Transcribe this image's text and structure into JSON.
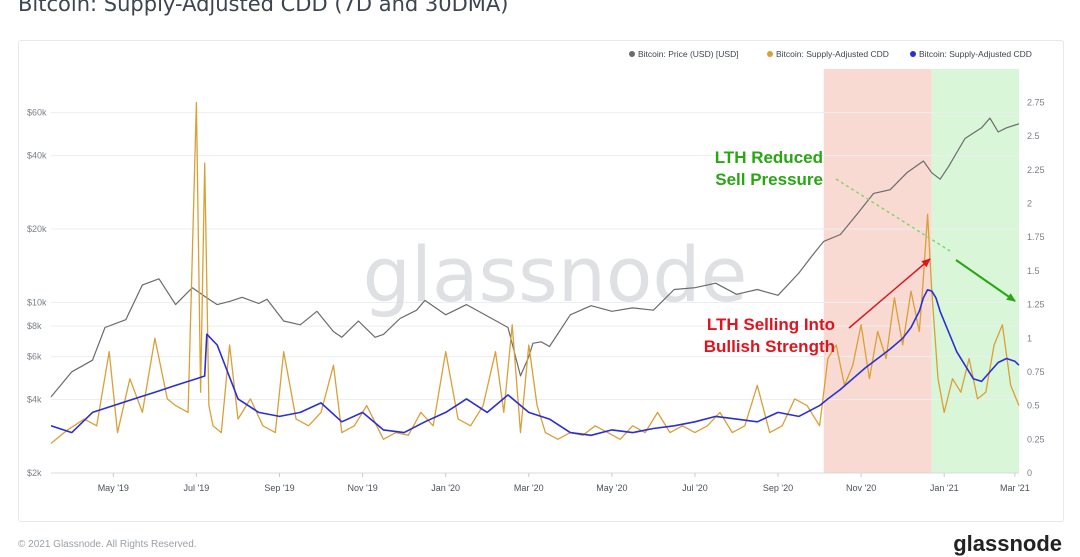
{
  "page": {
    "title": "Bitcoin: Supply-Adjusted CDD (7D and 30DMA)",
    "footer_copyright": "© 2021 Glassnode. All Rights Reserved.",
    "footer_brand": "glassnode",
    "watermark": "glassnode"
  },
  "colors": {
    "price": "#6b6b6b",
    "cdd_7d": "#d9a037",
    "cdd_30dma": "#2a2fd4",
    "highlight_red": "#f8d3cb",
    "highlight_green": "#d2f5d2",
    "annotation_red": "#e0141e",
    "annotation_green": "#2aa614"
  },
  "chart_data": {
    "type": "line",
    "title": "Bitcoin: Supply-Adjusted CDD (7D and 30DMA)",
    "legend_position": "top-right",
    "legend": [
      "Bitcoin: Price (USD) [USD]",
      "Bitcoin: Supply-Adjusted CDD",
      "Bitcoin: Supply-Adjusted CDD"
    ],
    "x_ticks": [
      "May '19",
      "Jul '19",
      "Sep '19",
      "Nov '19",
      "Jan '20",
      "Mar '20",
      "May '20",
      "Jul '20",
      "Sep '20",
      "Nov '20",
      "Jan '21",
      "Mar '21"
    ],
    "x_range_months": [
      0,
      23.3
    ],
    "y_left": {
      "scale": "log",
      "range": [
        2000,
        75000
      ],
      "ticks": [
        2000,
        4000,
        6000,
        8000,
        10000,
        20000,
        40000,
        60000
      ],
      "tick_labels": [
        "$2k",
        "$4k",
        "$6k",
        "$8k",
        "$10k",
        "$20k",
        "$40k",
        "$60k"
      ]
    },
    "y_right": {
      "scale": "linear",
      "range": [
        0,
        2.85
      ],
      "ticks": [
        0,
        0.25,
        0.5,
        0.75,
        1,
        1.25,
        1.5,
        1.75,
        2,
        2.25,
        2.5,
        2.75
      ],
      "tick_labels": [
        "0",
        "0.25",
        "0.5",
        "0.75",
        "1",
        "1.25",
        "1.5",
        "1.75",
        "2",
        "2.25",
        "2.5",
        "2.75"
      ]
    },
    "highlights": [
      {
        "name": "lth-selling-region",
        "from_month": 18.6,
        "to_month": 21.2,
        "color": "red"
      },
      {
        "name": "lth-reduced-region",
        "from_month": 21.2,
        "to_month": 23.3,
        "color": "green"
      }
    ],
    "annotations": [
      {
        "name": "lth-reduced-sell-pressure",
        "lines": [
          "LTH Reduced",
          "Sell Pressure"
        ],
        "color": "green"
      },
      {
        "name": "lth-selling-into-bullish-strength",
        "lines": [
          "LTH Selling Into",
          "Bullish Strength"
        ],
        "color": "red"
      }
    ],
    "series": [
      {
        "name": "Bitcoin: Price (USD) [USD]",
        "axis": "left",
        "x": [
          0,
          0.5,
          1,
          1.3,
          1.8,
          2.2,
          2.6,
          3.0,
          3.4,
          3.8,
          4.0,
          4.3,
          4.6,
          5.0,
          5.2,
          5.6,
          6.0,
          6.4,
          6.8,
          7.0,
          7.4,
          7.8,
          8.0,
          8.4,
          8.8,
          9.0,
          9.5,
          10.0,
          10.5,
          11.0,
          11.3,
          11.5,
          11.6,
          11.8,
          12.0,
          12.5,
          13.0,
          13.5,
          14.0,
          14.5,
          15.0,
          15.5,
          16.0,
          16.5,
          17.0,
          17.5,
          18.0,
          18.3,
          18.6,
          19.0,
          19.4,
          19.8,
          20.2,
          20.6,
          21.0,
          21.2,
          21.4,
          21.6,
          22.0,
          22.4,
          22.6,
          22.8,
          23.0,
          23.3
        ],
        "values": [
          4100,
          5200,
          5800,
          7900,
          8500,
          11800,
          12500,
          9800,
          11500,
          10300,
          9800,
          10100,
          10500,
          9900,
          10300,
          8400,
          8100,
          9200,
          7600,
          7200,
          8400,
          7200,
          7400,
          8600,
          9300,
          10200,
          8900,
          9800,
          8800,
          7900,
          5000,
          6000,
          6800,
          6900,
          6600,
          8900,
          9700,
          9200,
          9500,
          9300,
          11300,
          11500,
          12000,
          10800,
          11300,
          10700,
          13200,
          15400,
          17800,
          19000,
          23000,
          28000,
          29000,
          34000,
          38000,
          34000,
          32000,
          36000,
          47000,
          52000,
          57000,
          50000,
          52000,
          54000
        ]
      },
      {
        "name": "Bitcoin: Supply-Adjusted CDD (7D)",
        "axis": "right",
        "x": [
          0,
          0.4,
          0.8,
          1.1,
          1.4,
          1.6,
          1.9,
          2.2,
          2.5,
          2.8,
          3.0,
          3.3,
          3.5,
          3.6,
          3.7,
          3.8,
          3.9,
          4.1,
          4.3,
          4.5,
          4.8,
          5.1,
          5.4,
          5.6,
          5.9,
          6.2,
          6.5,
          6.8,
          7.0,
          7.3,
          7.6,
          8.0,
          8.3,
          8.6,
          8.9,
          9.2,
          9.5,
          9.8,
          10.1,
          10.4,
          10.7,
          10.9,
          11.1,
          11.3,
          11.5,
          11.7,
          11.9,
          12.2,
          12.5,
          12.8,
          13.1,
          13.4,
          13.7,
          14.0,
          14.3,
          14.6,
          14.9,
          15.2,
          15.5,
          15.8,
          16.1,
          16.4,
          16.7,
          17.0,
          17.3,
          17.6,
          17.9,
          18.2,
          18.5,
          18.7,
          18.9,
          19.1,
          19.3,
          19.5,
          19.7,
          19.9,
          20.1,
          20.3,
          20.5,
          20.7,
          20.9,
          21.0,
          21.1,
          21.2,
          21.35,
          21.5,
          21.7,
          21.9,
          22.1,
          22.3,
          22.5,
          22.7,
          22.9,
          23.1,
          23.3
        ],
        "values": [
          0.22,
          0.32,
          0.4,
          0.35,
          0.9,
          0.3,
          0.7,
          0.45,
          1.0,
          0.55,
          0.5,
          0.45,
          2.75,
          0.6,
          2.3,
          0.5,
          0.35,
          0.3,
          0.95,
          0.4,
          0.55,
          0.35,
          0.3,
          0.9,
          0.4,
          0.35,
          0.45,
          0.8,
          0.3,
          0.35,
          0.5,
          0.25,
          0.3,
          0.28,
          0.45,
          0.35,
          0.9,
          0.4,
          0.35,
          0.5,
          0.9,
          0.45,
          1.1,
          0.3,
          0.95,
          0.5,
          0.3,
          0.25,
          0.3,
          0.28,
          0.35,
          0.3,
          0.25,
          0.35,
          0.3,
          0.45,
          0.3,
          0.35,
          0.3,
          0.35,
          0.45,
          0.3,
          0.35,
          0.65,
          0.3,
          0.35,
          0.55,
          0.5,
          0.35,
          0.85,
          0.95,
          0.65,
          0.8,
          1.1,
          0.7,
          1.05,
          0.85,
          1.3,
          0.95,
          1.35,
          1.05,
          1.45,
          1.92,
          1.35,
          0.7,
          0.45,
          0.7,
          0.6,
          0.85,
          0.55,
          0.6,
          0.95,
          1.1,
          0.65,
          0.5
        ]
      },
      {
        "name": "Bitcoin: Supply-Adjusted CDD (30DMA)",
        "axis": "right",
        "x": [
          0,
          0.5,
          1,
          1.5,
          2,
          2.5,
          3,
          3.5,
          3.7,
          3.75,
          4.0,
          4.5,
          5,
          5.5,
          6,
          6.5,
          7,
          7.5,
          8,
          8.5,
          9,
          9.5,
          10,
          10.5,
          11,
          11.5,
          12,
          12.5,
          13,
          13.5,
          14,
          14.5,
          15,
          15.5,
          16,
          16.5,
          17,
          17.5,
          18,
          18.5,
          18.7,
          19,
          19.3,
          19.6,
          19.9,
          20.2,
          20.5,
          20.7,
          20.9,
          21.0,
          21.1,
          21.2,
          21.3,
          21.4,
          21.6,
          21.8,
          22.0,
          22.2,
          22.4,
          22.6,
          22.8,
          23.0,
          23.2,
          23.3
        ],
        "values": [
          0.35,
          0.3,
          0.45,
          0.5,
          0.55,
          0.6,
          0.65,
          0.7,
          0.72,
          1.03,
          0.95,
          0.55,
          0.45,
          0.42,
          0.45,
          0.52,
          0.38,
          0.45,
          0.32,
          0.3,
          0.38,
          0.45,
          0.55,
          0.45,
          0.58,
          0.45,
          0.4,
          0.3,
          0.28,
          0.32,
          0.3,
          0.33,
          0.35,
          0.38,
          0.42,
          0.4,
          0.38,
          0.45,
          0.42,
          0.5,
          0.55,
          0.62,
          0.7,
          0.78,
          0.85,
          0.92,
          1.0,
          1.08,
          1.2,
          1.3,
          1.36,
          1.35,
          1.3,
          1.2,
          1.05,
          0.9,
          0.8,
          0.7,
          0.68,
          0.75,
          0.82,
          0.85,
          0.83,
          0.8
        ]
      }
    ]
  }
}
